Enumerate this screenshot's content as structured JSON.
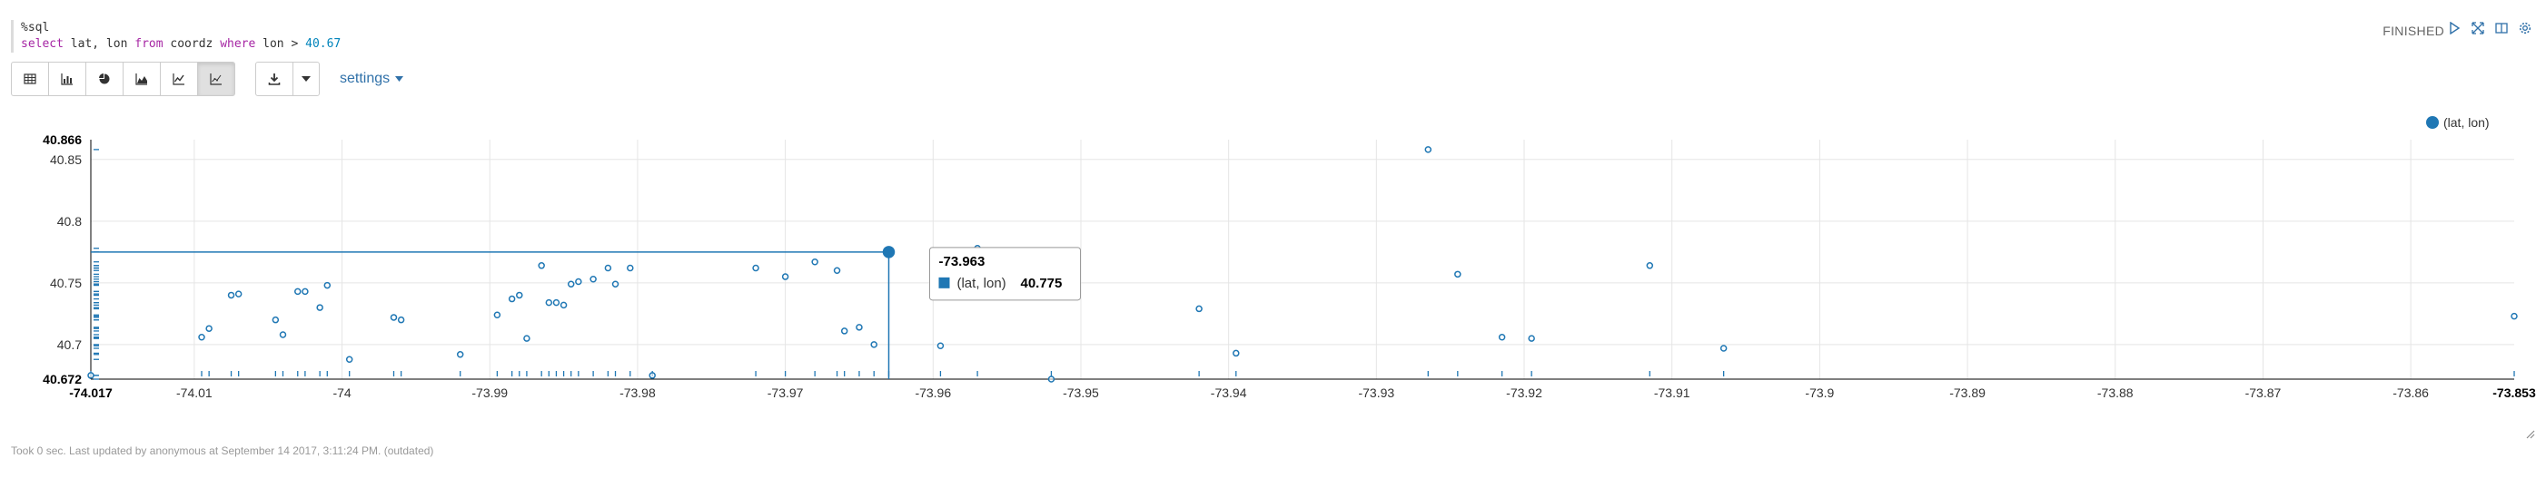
{
  "paragraph": {
    "code_lines": [
      {
        "parts": [
          {
            "t": "%sql",
            "c": ""
          }
        ]
      },
      {
        "parts": [
          {
            "t": "select",
            "c": "kw"
          },
          {
            "t": "  lat, lon ",
            "c": ""
          },
          {
            "t": "from",
            "c": "kw"
          },
          {
            "t": " coordz ",
            "c": ""
          },
          {
            "t": "where",
            "c": "kw"
          },
          {
            "t": " lon > ",
            "c": ""
          },
          {
            "t": "40.67",
            "c": "num"
          }
        ]
      }
    ],
    "status": "FINISHED",
    "footer": "Took 0 sec. Last updated by anonymous at September 14 2017, 3:11:24 PM. (outdated)"
  },
  "toolbar": {
    "chart_buttons": [
      {
        "name": "table-icon",
        "active": false
      },
      {
        "name": "bar-chart-icon",
        "active": false
      },
      {
        "name": "pie-chart-icon",
        "active": false
      },
      {
        "name": "area-chart-icon",
        "active": false
      },
      {
        "name": "line-chart-icon",
        "active": false
      },
      {
        "name": "scatter-chart-icon",
        "active": true
      }
    ],
    "settings_label": "settings"
  },
  "colors": {
    "accent": "#1f77b4",
    "link": "#3071a9",
    "grid": "#e5e5e5"
  },
  "chart_data": {
    "type": "scatter",
    "title": "",
    "xlabel": "",
    "ylabel": "",
    "xlim": [
      -74.017,
      -73.853
    ],
    "ylim": [
      40.672,
      40.866
    ],
    "xticks": [
      {
        "v": -74.01,
        "label": "-74.01"
      },
      {
        "v": -74.0,
        "label": "-74"
      },
      {
        "v": -73.99,
        "label": "-73.99"
      },
      {
        "v": -73.98,
        "label": "-73.98"
      },
      {
        "v": -73.97,
        "label": "-73.97"
      },
      {
        "v": -73.96,
        "label": "-73.96"
      },
      {
        "v": -73.95,
        "label": "-73.95"
      },
      {
        "v": -73.94,
        "label": "-73.94"
      },
      {
        "v": -73.93,
        "label": "-73.93"
      },
      {
        "v": -73.92,
        "label": "-73.92"
      },
      {
        "v": -73.91,
        "label": "-73.91"
      },
      {
        "v": -73.9,
        "label": "-73.9"
      },
      {
        "v": -73.89,
        "label": "-73.89"
      },
      {
        "v": -73.88,
        "label": "-73.88"
      },
      {
        "v": -73.87,
        "label": "-73.87"
      },
      {
        "v": -73.86,
        "label": "-73.86"
      }
    ],
    "yticks": [
      {
        "v": 40.7,
        "label": "40.7"
      },
      {
        "v": 40.75,
        "label": "40.75"
      },
      {
        "v": 40.8,
        "label": "40.8"
      },
      {
        "v": 40.85,
        "label": "40.85"
      }
    ],
    "x_range_labels": [
      "-74.017",
      "-73.853"
    ],
    "y_range_labels": [
      "40.672",
      "40.866"
    ],
    "legend": {
      "label": "(lat, lon)",
      "position": "top-right"
    },
    "grid": true,
    "series": [
      {
        "name": "(lat, lon)",
        "points": [
          [
            -74.017,
            40.675
          ],
          [
            -74.0095,
            40.706
          ],
          [
            -74.009,
            40.713
          ],
          [
            -74.0075,
            40.74
          ],
          [
            -74.007,
            40.741
          ],
          [
            -74.0045,
            40.72
          ],
          [
            -74.004,
            40.708
          ],
          [
            -74.003,
            40.743
          ],
          [
            -74.0025,
            40.743
          ],
          [
            -74.0015,
            40.73
          ],
          [
            -74.001,
            40.748
          ],
          [
            -73.9995,
            40.688
          ],
          [
            -73.9965,
            40.722
          ],
          [
            -73.996,
            40.72
          ],
          [
            -73.992,
            40.692
          ],
          [
            -73.9895,
            40.724
          ],
          [
            -73.9885,
            40.737
          ],
          [
            -73.988,
            40.74
          ],
          [
            -73.9875,
            40.705
          ],
          [
            -73.9865,
            40.764
          ],
          [
            -73.986,
            40.734
          ],
          [
            -73.9855,
            40.734
          ],
          [
            -73.985,
            40.732
          ],
          [
            -73.9845,
            40.749
          ],
          [
            -73.984,
            40.751
          ],
          [
            -73.983,
            40.753
          ],
          [
            -73.982,
            40.762
          ],
          [
            -73.9815,
            40.749
          ],
          [
            -73.9805,
            40.762
          ],
          [
            -73.979,
            40.675
          ],
          [
            -73.972,
            40.762
          ],
          [
            -73.97,
            40.755
          ],
          [
            -73.968,
            40.767
          ],
          [
            -73.9665,
            40.76
          ],
          [
            -73.966,
            40.711
          ],
          [
            -73.965,
            40.714
          ],
          [
            -73.964,
            40.7
          ],
          [
            -73.963,
            40.775
          ],
          [
            -73.9595,
            40.699
          ],
          [
            -73.957,
            40.778
          ],
          [
            -73.952,
            40.672
          ],
          [
            -73.942,
            40.729
          ],
          [
            -73.9395,
            40.693
          ],
          [
            -73.9265,
            40.858
          ],
          [
            -73.9245,
            40.757
          ],
          [
            -73.9215,
            40.706
          ],
          [
            -73.9195,
            40.705
          ],
          [
            -73.9115,
            40.764
          ],
          [
            -73.9065,
            40.697
          ],
          [
            -73.853,
            40.723
          ]
        ]
      }
    ],
    "hover": {
      "x": -73.963,
      "y": 40.775,
      "x_label": "-73.963",
      "series": "(lat, lon)",
      "y_label": "40.775"
    }
  }
}
